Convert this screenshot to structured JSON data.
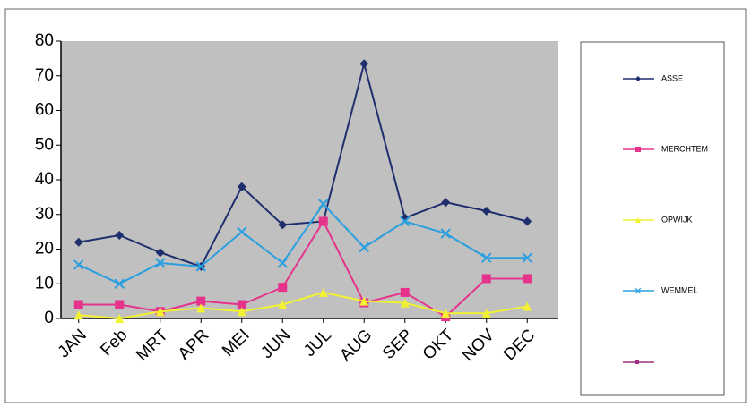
{
  "chart_data": {
    "type": "line",
    "categories": [
      "JAN",
      "Feb",
      "MRT",
      "APR",
      "MEI",
      "JUN",
      "JUL",
      "AUG",
      "SEP",
      "OKT",
      "NOV",
      "DEC"
    ],
    "series": [
      {
        "name": "ASSE",
        "color": "#1f2f6e",
        "marker": "diamond",
        "values": [
          22,
          24,
          19,
          15,
          38,
          27,
          28,
          73.5,
          29,
          33.5,
          31,
          28
        ]
      },
      {
        "name": "MERCHTEM",
        "color": "#e6338c",
        "marker": "square",
        "values": [
          4,
          4,
          2,
          5,
          4,
          9,
          28,
          4.5,
          7.5,
          0.5,
          11.5,
          11.5
        ]
      },
      {
        "name": "OPWIJK",
        "color": "#f2f230",
        "marker": "triangle",
        "values": [
          1,
          0,
          2,
          3,
          2,
          4,
          7.5,
          5,
          4.5,
          1.5,
          1.5,
          3.5
        ]
      },
      {
        "name": "WEMMEL",
        "color": "#2a9fe0",
        "marker": "x",
        "values": [
          15.5,
          10,
          16,
          15,
          25,
          16,
          33,
          20.5,
          28,
          24.5,
          17.5,
          17.5
        ]
      }
    ],
    "ylim": [
      0,
      80
    ],
    "yticks": [
      0,
      10,
      20,
      30,
      40,
      50,
      60,
      70,
      80
    ],
    "grid": false
  }
}
